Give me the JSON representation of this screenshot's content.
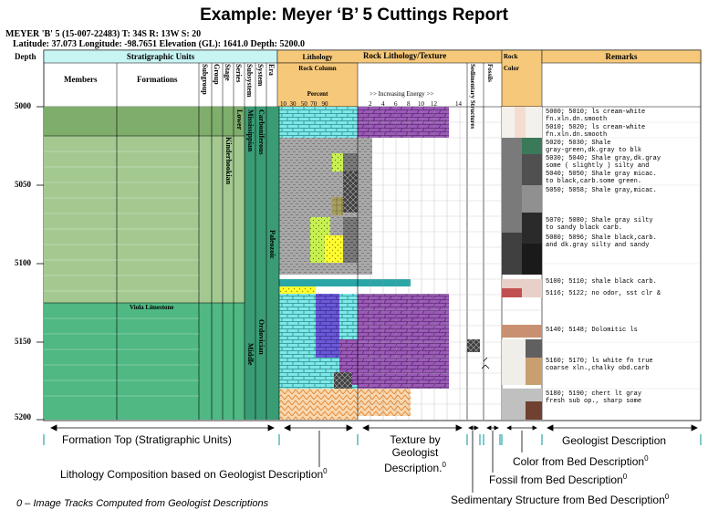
{
  "title": "Example: Meyer ‘B’ 5 Cuttings Report",
  "well": {
    "line1": "MEYER 'B' 5 (15-007-22483) T: 34S R: 13W S: 20",
    "line2": "Latitude: 37.073 Longitude: -98.7651 Elevation (GL): 1641.0 Depth: 5200.0"
  },
  "headers": {
    "depth": "Depth",
    "strat": "Stratigraphic Units",
    "members": "Members",
    "formations": "Formations",
    "subgroup": "Subgroup",
    "group": "Group",
    "stage": "Stage",
    "series": "Series",
    "subsystem": "Subsystem",
    "system": "System",
    "era": "Era",
    "lithology": "Lithology",
    "rock_column": "Rock Column",
    "percent": "Percent",
    "percent_ticks": "10  30   50  70   90",
    "rock_lith_texture": "Rock Lithology/Texture",
    "increasing_energy": ">> Increasing Energy >>",
    "energy_ticks": [
      "2",
      "4",
      "6",
      "8",
      "10",
      "12",
      "14"
    ],
    "sed_structures": "Sedimentary Structures",
    "fossils": "Fossils",
    "rock_color_1": "Rock",
    "rock_color_2": "Color",
    "remarks": "Remarks"
  },
  "depths": [
    "5000",
    "5050",
    "5100",
    "5150",
    "5200"
  ],
  "strat_labels": {
    "carboniferous": "Carboniferous",
    "mississippian": "Mississippian",
    "lower": "Lower",
    "kinderhookian": "Kinderhookian",
    "paleozoic": "Paleozoic",
    "viola": "Viola Limestone",
    "ordovician": "Ordovician",
    "middle": "Middle"
  },
  "remarks": [
    "5000; 5010; ls cream-white\nfn.xln.dn.smooth",
    "5010; 5020; ls cream-white\nfn.xln.dn.smooth",
    "5020; 5030; Shale\ngray-green,dk.gray to blk",
    "5030; 5040; Shale gray,dk.gray\nsome ( slightly ) silty and",
    "5040; 5050; Shale gray micac.\nto black,carb.some green.",
    "5050; 5058; Shale gray,micac.",
    "5070; 5080; Shale gray silty\nto sandy black carb.",
    "5080; 5096; Shale black,carb.\nand dk.gray silty and sandy",
    "5100; 5110; shale black carb.",
    "5116; 5122; no odor, sst clr &",
    "5140; 5148; Dolomitic ls",
    "5160; 5170; ls white fn true\ncoarse xln.,chalky obd.carb",
    "5180; 5190; chert lt gray\nfresh sub op., sharp some"
  ],
  "annotations": {
    "formation_top": "Formation Top (Stratigraphic Units)",
    "texture_1": "Texture by",
    "texture_2": "Geologist",
    "texture_3": "Description.",
    "geologist_desc": "Geologist  Description",
    "color_desc": "Color from Bed Description",
    "lith_comp": "Lithology Composition based on Geologist Description",
    "fossil_desc": "Fossil from Bed Description",
    "sed_desc": "Sedimentary Structure from Bed Description",
    "footnote": "0 – Image Tracks Computed from Geologist Descriptions",
    "sup": "0"
  },
  "colors": {
    "strat_header": "#c8f4f4",
    "lith_header": "#f6c87a",
    "mississippian_green": "#a3c990",
    "ordovician_green": "#4fb883",
    "dark_teal": "#2e8b6a",
    "limestone": "#7ee8e8",
    "dolomite": "#9b5ab8",
    "shale": "#a8a8a8",
    "chert": "#f4c890",
    "arrow_teal": "#2aa6a6"
  }
}
